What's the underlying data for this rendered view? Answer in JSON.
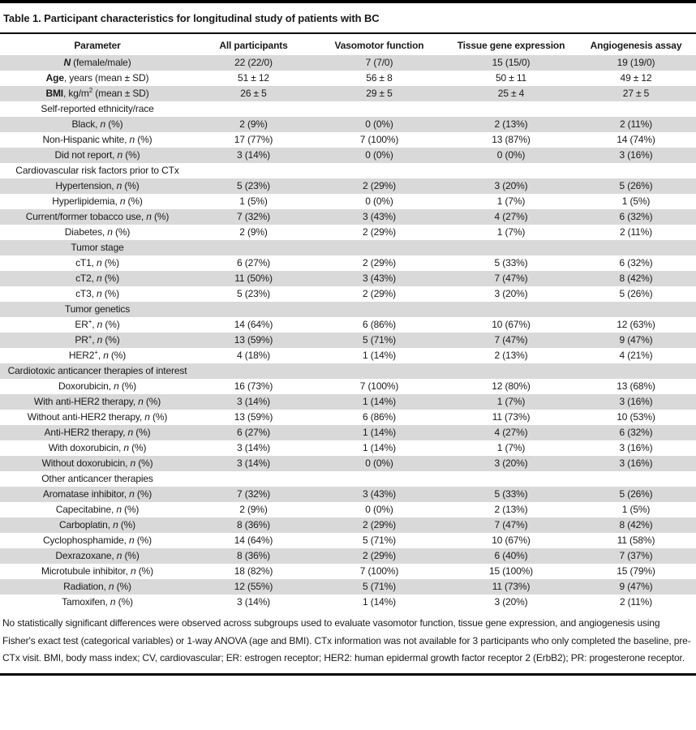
{
  "title": "Table 1. Participant characteristics for longitudinal study of patients with BC",
  "colors": {
    "row_shade": "#d9d9d9",
    "rule": "#000000",
    "text": "#1a1a1a"
  },
  "columns": [
    "Parameter",
    "All participants",
    "Vasomotor function",
    "Tissue gene expression",
    "Angiogenesis assay"
  ],
  "rows": [
    {
      "label": "**~N~** (female/male)",
      "values": [
        "22 (22/0)",
        "7 (7/0)",
        "15 (15/0)",
        "19 (19/0)"
      ]
    },
    {
      "label": "**Age**, years (mean ± SD)",
      "values": [
        "51 ± 12",
        "56 ± 8",
        "50 ± 11",
        "49 ± 12"
      ]
    },
    {
      "label": "**BMI**, kg/m^2^ (mean ± SD)",
      "values": [
        "26 ± 5",
        "29 ± 5",
        "25 ± 4",
        "27 ± 5"
      ]
    },
    {
      "label": "Self-reported ethnicity/race",
      "section": true
    },
    {
      "label": "Black, ~n~ (%)",
      "values": [
        "2 (9%)",
        "0 (0%)",
        "2 (13%)",
        "2 (11%)"
      ]
    },
    {
      "label": "Non-Hispanic white, ~n~ (%)",
      "values": [
        "17 (77%)",
        "7 (100%)",
        "13 (87%)",
        "14 (74%)"
      ]
    },
    {
      "label": "Did not report, ~n~ (%)",
      "values": [
        "3 (14%)",
        "0 (0%)",
        "0 (0%)",
        "3 (16%)"
      ]
    },
    {
      "label": "Cardiovascular risk factors prior to CTx",
      "section": true
    },
    {
      "label": "Hypertension, ~n~ (%)",
      "values": [
        "5 (23%)",
        "2 (29%)",
        "3 (20%)",
        "5 (26%)"
      ]
    },
    {
      "label": "Hyperlipidemia, ~n~ (%)",
      "values": [
        "1 (5%)",
        "0 (0%)",
        "1 (7%)",
        "1 (5%)"
      ]
    },
    {
      "label": "Current/former tobacco use, ~n~ (%)",
      "values": [
        "7 (32%)",
        "3 (43%)",
        "4 (27%)",
        "6 (32%)"
      ]
    },
    {
      "label": "Diabetes, ~n~ (%)",
      "values": [
        "2 (9%)",
        "2 (29%)",
        "1 (7%)",
        "2 (11%)"
      ]
    },
    {
      "label": "Tumor stage",
      "section": true
    },
    {
      "label": "cT1, ~n~ (%)",
      "values": [
        "6 (27%)",
        "2 (29%)",
        "5 (33%)",
        "6 (32%)"
      ]
    },
    {
      "label": "cT2, ~n~ (%)",
      "values": [
        "11 (50%)",
        "3 (43%)",
        "7 (47%)",
        "8 (42%)"
      ]
    },
    {
      "label": "cT3, ~n~ (%)",
      "values": [
        "5 (23%)",
        "2 (29%)",
        "3 (20%)",
        "5 (26%)"
      ]
    },
    {
      "label": "Tumor genetics",
      "section": true
    },
    {
      "label": "ER^+^, ~n~ (%)",
      "values": [
        "14 (64%)",
        "6 (86%)",
        "10 (67%)",
        "12 (63%)"
      ]
    },
    {
      "label": "PR^+^, ~n~ (%)",
      "values": [
        "13 (59%)",
        "5 (71%)",
        "7 (47%)",
        "9 (47%)"
      ]
    },
    {
      "label": "HER2^+^, ~n~ (%)",
      "values": [
        "4 (18%)",
        "1 (14%)",
        "2 (13%)",
        "4 (21%)"
      ]
    },
    {
      "label": "Cardiotoxic anticancer therapies of interest",
      "section": true
    },
    {
      "label": "Doxorubicin, ~n~ (%)",
      "values": [
        "16 (73%)",
        "7 (100%)",
        "12 (80%)",
        "13 (68%)"
      ]
    },
    {
      "label": "With anti-HER2 therapy, ~n~ (%)",
      "values": [
        "3 (14%)",
        "1 (14%)",
        "1 (7%)",
        "3 (16%)"
      ]
    },
    {
      "label": "Without anti-HER2 therapy, ~n~ (%)",
      "values": [
        "13 (59%)",
        "6 (86%)",
        "11 (73%)",
        "10 (53%)"
      ]
    },
    {
      "label": "Anti-HER2 therapy, ~n~ (%)",
      "values": [
        "6 (27%)",
        "1 (14%)",
        "4 (27%)",
        "6 (32%)"
      ]
    },
    {
      "label": "With doxorubicin, ~n~ (%)",
      "values": [
        "3 (14%)",
        "1 (14%)",
        "1 (7%)",
        "3 (16%)"
      ]
    },
    {
      "label": "Without doxorubicin, ~n~ (%)",
      "values": [
        "3 (14%)",
        "0 (0%)",
        "3 (20%)",
        "3 (16%)"
      ]
    },
    {
      "label": "Other anticancer therapies",
      "section": true
    },
    {
      "label": "Aromatase inhibitor, ~n~ (%)",
      "values": [
        "7 (32%)",
        "3 (43%)",
        "5 (33%)",
        "5 (26%)"
      ]
    },
    {
      "label": "Capecitabine, ~n~ (%)",
      "values": [
        "2 (9%)",
        "0 (0%)",
        "2 (13%)",
        "1 (5%)"
      ]
    },
    {
      "label": "Carboplatin, ~n~ (%)",
      "values": [
        "8 (36%)",
        "2 (29%)",
        "7 (47%)",
        "8 (42%)"
      ]
    },
    {
      "label": "Cyclophosphamide, ~n~ (%)",
      "values": [
        "14 (64%)",
        "5 (71%)",
        "10 (67%)",
        "11 (58%)"
      ]
    },
    {
      "label": "Dexrazoxane, ~n~ (%)",
      "values": [
        "8 (36%)",
        "2 (29%)",
        "6 (40%)",
        "7 (37%)"
      ]
    },
    {
      "label": "Microtubule inhibitor, ~n~ (%)",
      "values": [
        "18 (82%)",
        "7 (100%)",
        "15 (100%)",
        "15 (79%)"
      ]
    },
    {
      "label": "Radiation, ~n~ (%)",
      "values": [
        "12 (55%)",
        "5 (71%)",
        "11 (73%)",
        "9 (47%)"
      ]
    },
    {
      "label": "Tamoxifen, ~n~ (%)",
      "values": [
        "3 (14%)",
        "1 (14%)",
        "3 (20%)",
        "2 (11%)"
      ]
    }
  ],
  "footnote": "No statistically significant differences were observed across subgroups used to evaluate vasomotor function, tissue gene expression, and angiogenesis using Fisher's exact test (categorical variables) or 1-way ANOVA (age and BMI). CTx information was not available for 3 participants who only completed the baseline, pre-CTx visit. BMI, body mass index; CV, cardiovascular; ER: estrogen receptor; HER2: human epidermal growth factor receptor 2 (ErbB2); PR: progesterone receptor."
}
